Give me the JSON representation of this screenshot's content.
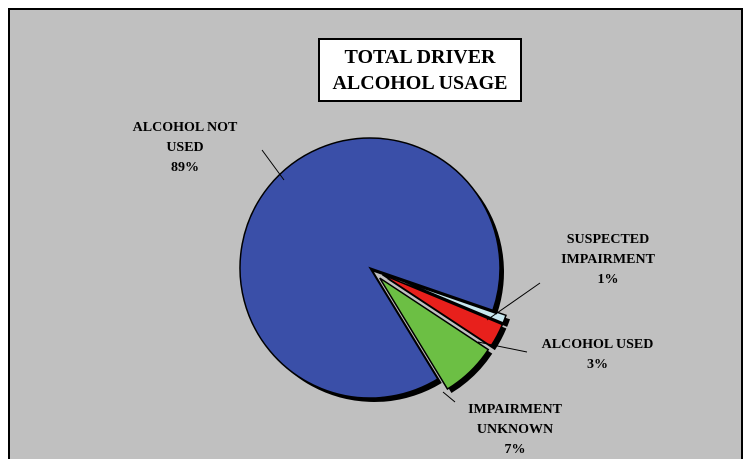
{
  "chart_data": {
    "type": "pie",
    "title": "TOTAL DRIVER ALCOHOL USAGE",
    "categories": [
      "SUSPECTED IMPAIRMENT",
      "ALCOHOL USED",
      "IMPAIRMENT UNKNOWN",
      "ALCOHOL NOT USED"
    ],
    "values": [
      1,
      3,
      7,
      89
    ],
    "value_labels": [
      "1%",
      "3%",
      "7%",
      "89%"
    ],
    "colors": [
      "#c8e8f0",
      "#e8201c",
      "#6cbf44",
      "#3a4fa8"
    ]
  }
}
